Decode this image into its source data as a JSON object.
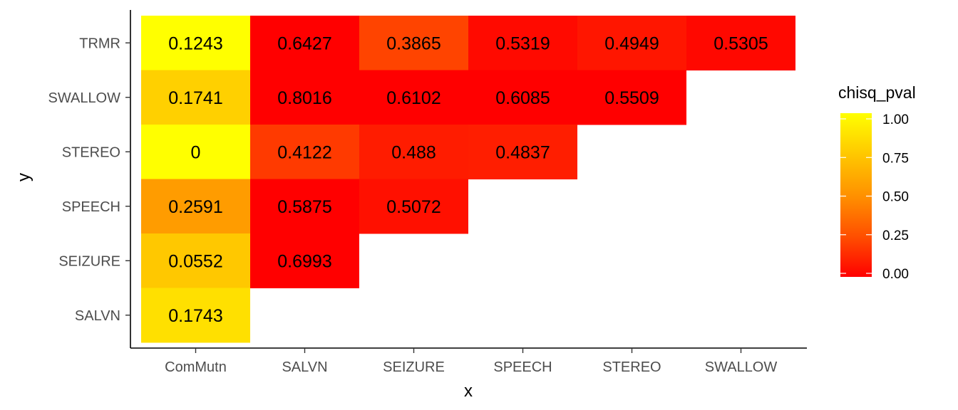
{
  "chart_data": {
    "type": "heatmap",
    "xlabel": "x",
    "ylabel": "y",
    "x_categories": [
      "ComMutn",
      "SALVN",
      "SEIZURE",
      "SPEECH",
      "STEREO",
      "SWALLOW"
    ],
    "y_categories": [
      "SALVN",
      "SEIZURE",
      "SPEECH",
      "STEREO",
      "SWALLOW",
      "TRMR"
    ],
    "cells": [
      {
        "x": "ComMutn",
        "y": "TRMR",
        "value": 0.1243,
        "label": "0.1243"
      },
      {
        "x": "SALVN",
        "y": "TRMR",
        "value": 0.6427,
        "label": "0.6427"
      },
      {
        "x": "SEIZURE",
        "y": "TRMR",
        "value": 0.3865,
        "label": "0.3865"
      },
      {
        "x": "SPEECH",
        "y": "TRMR",
        "value": 0.5319,
        "label": "0.5319"
      },
      {
        "x": "STEREO",
        "y": "TRMR",
        "value": 0.4949,
        "label": "0.4949"
      },
      {
        "x": "SWALLOW",
        "y": "TRMR",
        "value": 0.5305,
        "label": "0.5305"
      },
      {
        "x": "ComMutn",
        "y": "SWALLOW",
        "value": 0.1741,
        "label": "0.1741"
      },
      {
        "x": "SALVN",
        "y": "SWALLOW",
        "value": 0.8016,
        "label": "0.8016"
      },
      {
        "x": "SEIZURE",
        "y": "SWALLOW",
        "value": 0.6102,
        "label": "0.6102"
      },
      {
        "x": "SPEECH",
        "y": "SWALLOW",
        "value": 0.6085,
        "label": "0.6085"
      },
      {
        "x": "STEREO",
        "y": "SWALLOW",
        "value": 0.5509,
        "label": "0.5509"
      },
      {
        "x": "ComMutn",
        "y": "STEREO",
        "value": 0,
        "label": "0"
      },
      {
        "x": "SALVN",
        "y": "STEREO",
        "value": 0.4122,
        "label": "0.4122"
      },
      {
        "x": "SEIZURE",
        "y": "STEREO",
        "value": 0.488,
        "label": "0.488"
      },
      {
        "x": "SPEECH",
        "y": "STEREO",
        "value": 0.4837,
        "label": "0.4837"
      },
      {
        "x": "ComMutn",
        "y": "SPEECH",
        "value": 0.2591,
        "label": "0.2591"
      },
      {
        "x": "SALVN",
        "y": "SPEECH",
        "value": 0.5875,
        "label": "0.5875"
      },
      {
        "x": "SEIZURE",
        "y": "SPEECH",
        "value": 0.5072,
        "label": "0.5072"
      },
      {
        "x": "ComMutn",
        "y": "SEIZURE",
        "value": 0.0552,
        "label": "0.0552"
      },
      {
        "x": "SALVN",
        "y": "SEIZURE",
        "value": 0.6993,
        "label": "0.6993"
      },
      {
        "x": "ComMutn",
        "y": "SALVN",
        "value": 0.1743,
        "label": "0.1743"
      }
    ],
    "fill_colors": {
      "ComMutn|TRMR": "#ffff00",
      "SALVN|TRMR": "#ff0000",
      "SEIZURE|TRMR": "#ff4400",
      "SPEECH|TRMR": "#ff0a00",
      "STEREO|TRMR": "#ff1600",
      "SWALLOW|TRMR": "#ff0800",
      "ComMutn|SWALLOW": "#ffd000",
      "SALVN|SWALLOW": "#ff0000",
      "SEIZURE|SWALLOW": "#ff0000",
      "SPEECH|SWALLOW": "#ff0000",
      "STEREO|SWALLOW": "#ff0000",
      "ComMutn|STEREO": "#ffff00",
      "SALVN|STEREO": "#ff3a00",
      "SEIZURE|STEREO": "#ff1c00",
      "SPEECH|STEREO": "#ff1e00",
      "ComMutn|SPEECH": "#ff9c00",
      "SALVN|SPEECH": "#ff0000",
      "SEIZURE|SPEECH": "#ff1000",
      "ComMutn|SEIZURE": "#ffc800",
      "SALVN|SEIZURE": "#ff0000",
      "ComMutn|SALVN": "#ffe000"
    },
    "legend": {
      "title": "chisq_pval",
      "position": "right",
      "ticks": [
        1.0,
        0.75,
        0.5,
        0.25,
        0.0
      ],
      "tick_labels": [
        "1.00",
        "0.75",
        "0.50",
        "0.25",
        "0.00"
      ],
      "gradient_colors": [
        "#ffff00",
        "#ffc800",
        "#ff9200",
        "#ff5000",
        "#ff0000"
      ]
    },
    "grid": false,
    "axis_lines": true
  }
}
